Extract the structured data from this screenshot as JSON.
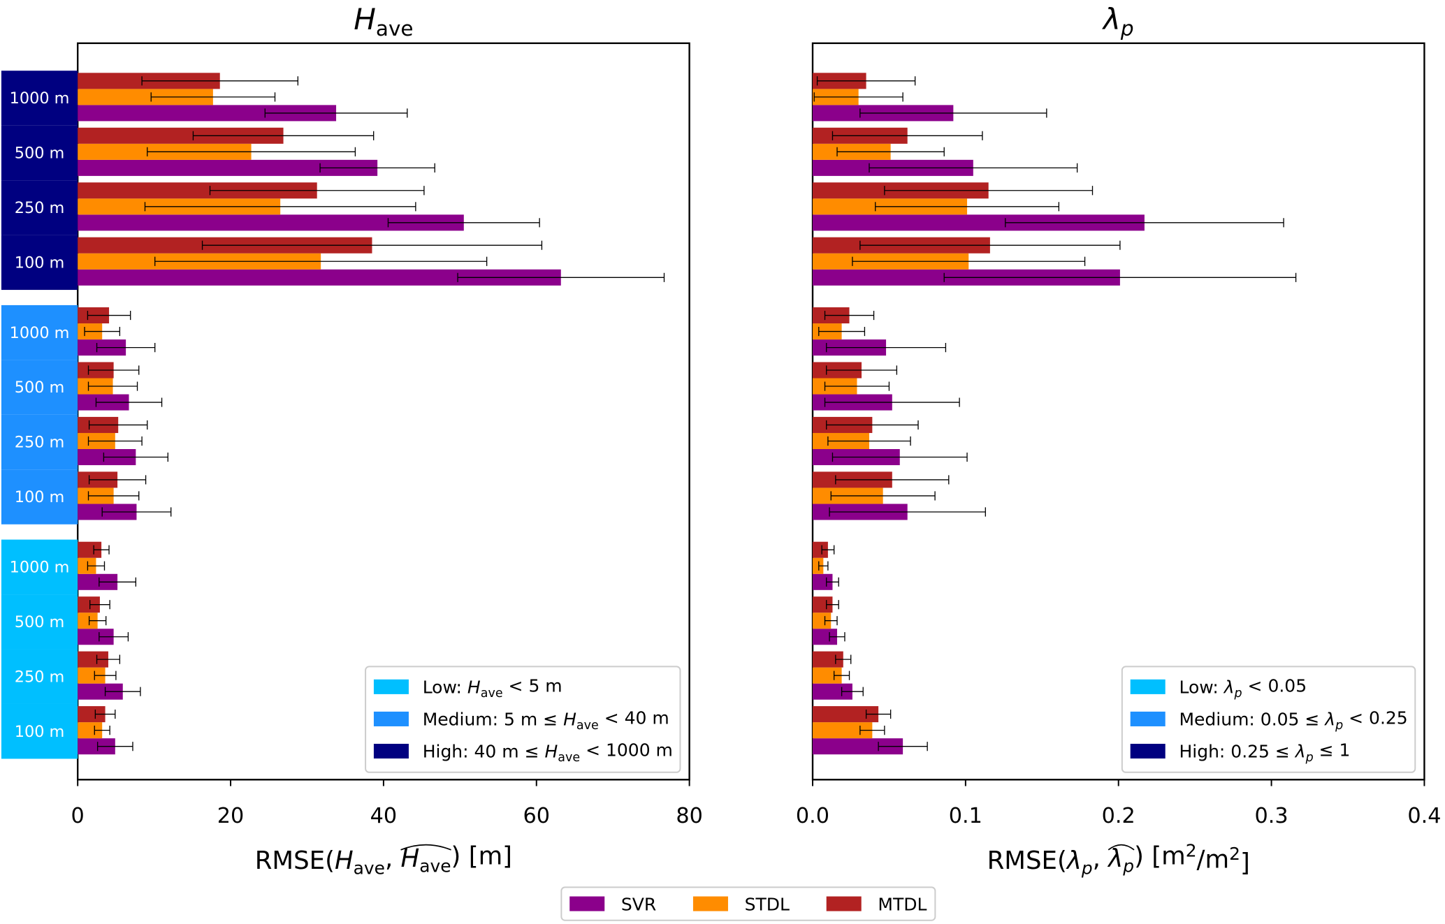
{
  "chart_data": [
    {
      "type": "bar",
      "orientation": "horizontal",
      "title": [
        {
          "t": "H",
          "i": true
        },
        {
          "t": "ave",
          "sub": true
        }
      ],
      "xlabel": [
        {
          "t": "RMSE("
        },
        {
          "t": "H",
          "i": true
        },
        {
          "t": "ave",
          "sub": true
        },
        {
          "t": ", "
        },
        {
          "t": "H",
          "i": true,
          "hat": true
        },
        {
          "t": "ave",
          "sub": true
        },
        {
          "t": ") [m]"
        }
      ],
      "xlim": [
        0,
        80
      ],
      "xticks": [
        0,
        20,
        40,
        60,
        80
      ],
      "categories": [
        "1000 m",
        "500 m",
        "250 m",
        "100 m",
        "1000 m",
        "500 m",
        "250 m",
        "100 m",
        "1000 m",
        "500 m",
        "250 m",
        "100 m"
      ],
      "category_colors": [
        "#000080",
        "#000080",
        "#000080",
        "#000080",
        "#1e90ff",
        "#1e90ff",
        "#1e90ff",
        "#1e90ff",
        "#00bfff",
        "#00bfff",
        "#00bfff",
        "#00bfff"
      ],
      "series": [
        {
          "name": "SVR",
          "color": "#8b008b",
          "values": [
            33.8,
            39.2,
            50.5,
            63.2,
            6.3,
            6.7,
            7.6,
            7.7,
            5.2,
            4.7,
            5.9,
            4.9
          ],
          "errors": [
            9.3,
            7.5,
            9.9,
            13.5,
            3.8,
            4.3,
            4.2,
            4.5,
            2.4,
            1.9,
            2.3,
            2.3
          ]
        },
        {
          "name": "STDL",
          "color": "#ff8c00",
          "values": [
            17.7,
            22.7,
            26.5,
            31.8,
            3.2,
            4.6,
            4.9,
            4.7,
            2.4,
            2.6,
            3.6,
            3.2
          ],
          "errors": [
            8.1,
            13.6,
            17.7,
            21.7,
            2.3,
            3.2,
            3.5,
            3.3,
            1.1,
            1.1,
            1.4,
            1.0
          ]
        },
        {
          "name": "MTDL",
          "color": "#b22222",
          "values": [
            18.6,
            26.9,
            31.3,
            38.5,
            4.1,
            4.7,
            5.3,
            5.2,
            3.1,
            2.9,
            4.0,
            3.6
          ],
          "errors": [
            10.2,
            11.8,
            14.0,
            22.2,
            2.8,
            3.3,
            3.8,
            3.7,
            1.0,
            1.3,
            1.5,
            1.3
          ]
        }
      ],
      "legend": {
        "loc": "lower right",
        "entries": [
          {
            "color": "#00bfff",
            "label": [
              {
                "t": "Low: "
              },
              {
                "t": "H",
                "i": true
              },
              {
                "t": "ave",
                "sub": true
              },
              {
                "t": " < 5 m"
              }
            ]
          },
          {
            "color": "#1e90ff",
            "label": [
              {
                "t": "Medium: 5 m ≤ "
              },
              {
                "t": "H",
                "i": true
              },
              {
                "t": "ave",
                "sub": true
              },
              {
                "t": " < 40 m"
              }
            ]
          },
          {
            "color": "#000080",
            "label": [
              {
                "t": "High: 40 m ≤ "
              },
              {
                "t": "H",
                "i": true
              },
              {
                "t": "ave",
                "sub": true
              },
              {
                "t": " < 1000 m"
              }
            ]
          }
        ]
      }
    },
    {
      "type": "bar",
      "orientation": "horizontal",
      "title": [
        {
          "t": "λ",
          "i": true
        },
        {
          "t": "p",
          "i": true,
          "sub": true
        }
      ],
      "xlabel": [
        {
          "t": "RMSE("
        },
        {
          "t": "λ",
          "i": true
        },
        {
          "t": "p",
          "i": true,
          "sub": true
        },
        {
          "t": ", "
        },
        {
          "t": "λ",
          "i": true,
          "hat": true
        },
        {
          "t": "p",
          "i": true,
          "sub": true
        },
        {
          "t": ") [m"
        },
        {
          "t": "2",
          "sup": true
        },
        {
          "t": "/m"
        },
        {
          "t": "2",
          "sup": true
        },
        {
          "t": "]"
        }
      ],
      "xlim": [
        0,
        0.4
      ],
      "xticks": [
        {
          "value": 0,
          "label": "0.0"
        },
        0.1,
        0.2,
        0.3,
        0.4
      ],
      "series": [
        {
          "color": "#8b008b",
          "values": [
            0.092,
            0.105,
            0.217,
            0.201,
            0.048,
            0.052,
            0.057,
            0.062,
            0.013,
            0.016,
            0.026,
            0.059
          ],
          "errors": [
            0.061,
            0.068,
            0.091,
            0.115,
            0.039,
            0.044,
            0.044,
            0.051,
            0.004,
            0.005,
            0.007,
            0.016
          ]
        },
        {
          "color": "#ff8c00",
          "values": [
            0.03,
            0.051,
            0.101,
            0.102,
            0.019,
            0.029,
            0.037,
            0.046,
            0.007,
            0.012,
            0.019,
            0.039
          ],
          "errors": [
            0.029,
            0.035,
            0.06,
            0.076,
            0.015,
            0.021,
            0.027,
            0.034,
            0.003,
            0.004,
            0.005,
            0.008
          ]
        },
        {
          "color": "#b22222",
          "values": [
            0.035,
            0.062,
            0.115,
            0.116,
            0.024,
            0.032,
            0.039,
            0.052,
            0.01,
            0.013,
            0.02,
            0.043
          ],
          "errors": [
            0.032,
            0.049,
            0.068,
            0.085,
            0.016,
            0.023,
            0.03,
            0.037,
            0.004,
            0.004,
            0.005,
            0.008
          ]
        }
      ],
      "legend": {
        "loc": "lower right",
        "entries": [
          {
            "color": "#00bfff",
            "label": [
              {
                "t": "Low: "
              },
              {
                "t": "λ",
                "i": true
              },
              {
                "t": "p",
                "i": true,
                "sub": true
              },
              {
                "t": " < 0.05"
              }
            ]
          },
          {
            "color": "#1e90ff",
            "label": [
              {
                "t": "Medium: 0.05 ≤ "
              },
              {
                "t": "λ",
                "i": true
              },
              {
                "t": "p",
                "i": true,
                "sub": true
              },
              {
                "t": " < 0.25"
              }
            ]
          },
          {
            "color": "#000080",
            "label": [
              {
                "t": "High: 0.25 ≤ "
              },
              {
                "t": "λ",
                "i": true
              },
              {
                "t": "p",
                "i": true,
                "sub": true
              },
              {
                "t": " ≤ 1"
              }
            ]
          }
        ]
      }
    }
  ]
}
